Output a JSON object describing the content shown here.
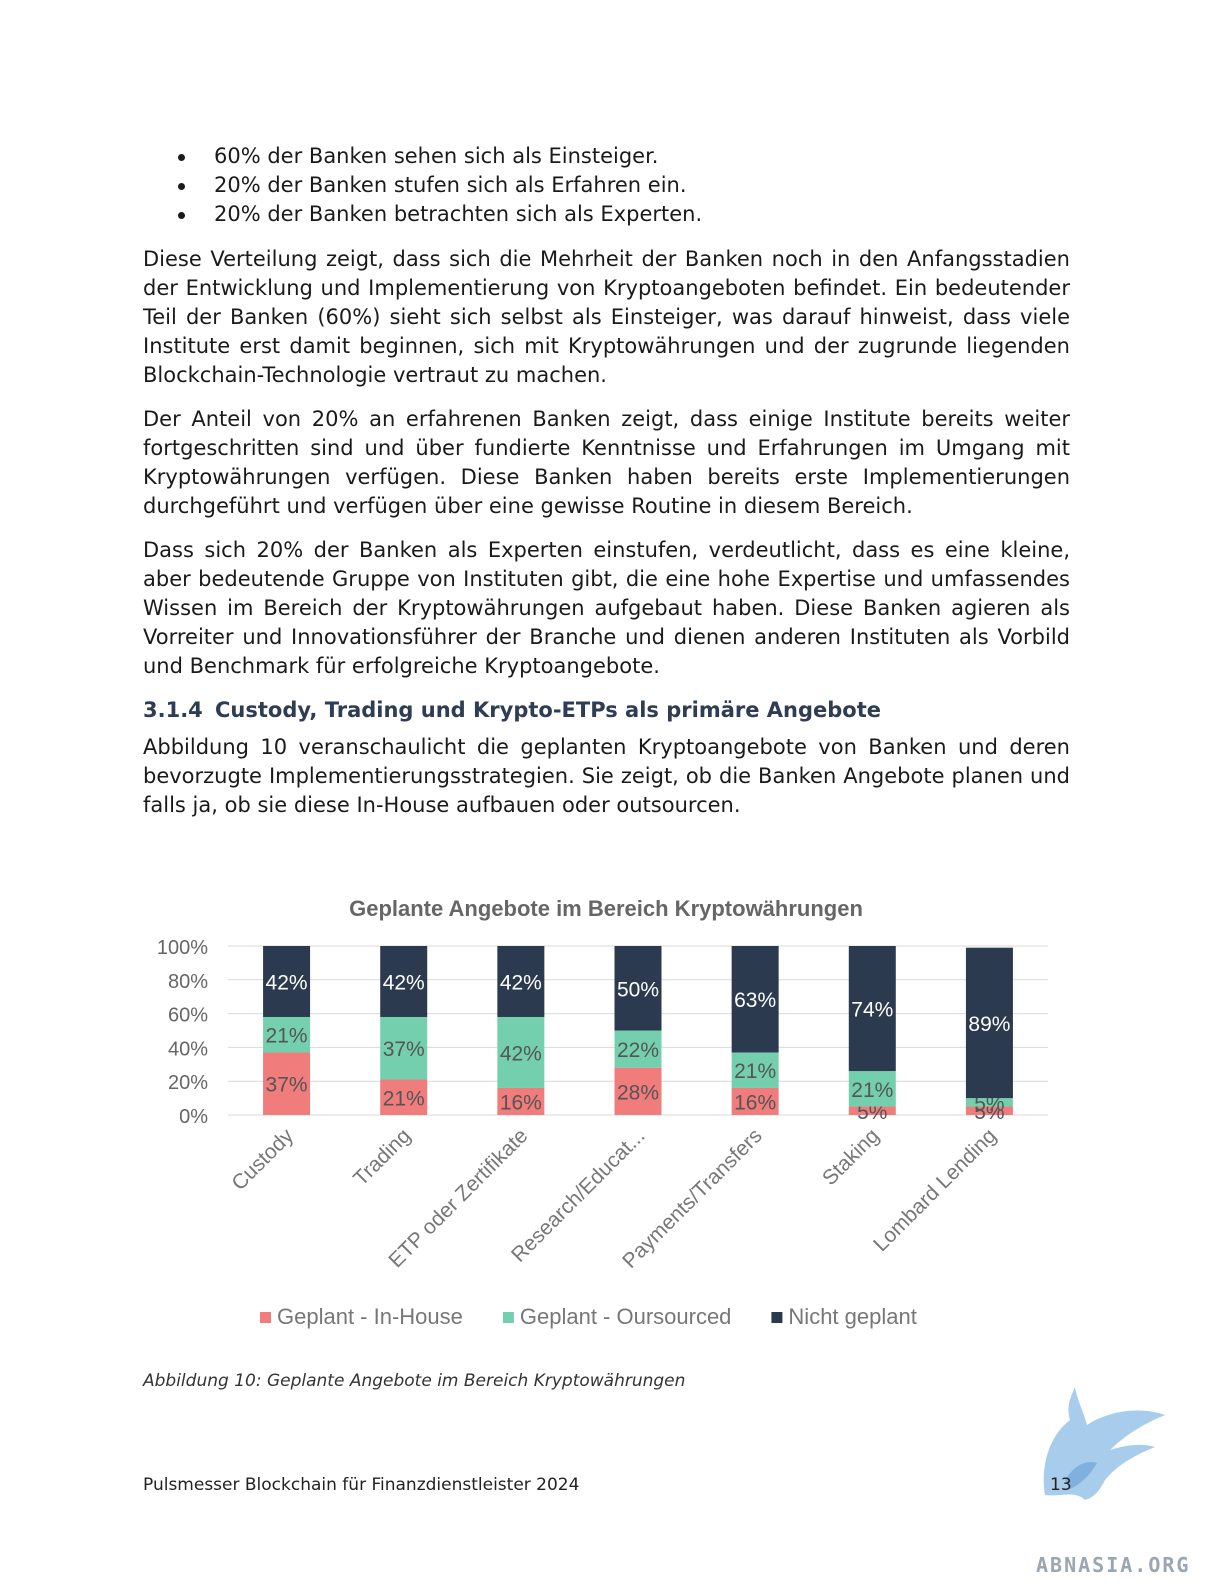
{
  "bullets": [
    "60% der Banken sehen sich als Einsteiger.",
    "20% der Banken stufen sich als Erfahren ein.",
    "20% der Banken betrachten sich als Experten."
  ],
  "paragraphs": {
    "p1": "Diese Verteilung zeigt, dass sich die Mehrheit der Banken noch in den Anfangsstadien der Entwicklung und Implementierung von Kryptoangeboten befindet. Ein bedeutender Teil der Banken (60%) sieht sich selbst als Einsteiger, was darauf hinweist, dass viele Institute erst damit beginnen, sich mit Kryptowährungen und der zugrunde liegenden Blockchain-Technologie vertraut zu machen.",
    "p2": "Der Anteil von 20% an erfahrenen Banken zeigt, dass einige Institute bereits weiter fortge­schritten sind und über fundierte Kenntnisse und Erfahrungen im Umgang mit Kryptowäh­rungen verfügen. Diese Banken haben bereits erste Implementierungen durchgeführt und verfügen über eine gewisse Routine in diesem Bereich.",
    "p3": "Dass sich 20% der Banken als Experten einstufen, verdeutlicht, dass es eine kleine, aber bedeutende Gruppe von Instituten gibt, die eine hohe Expertise und umfassendes Wissen im Bereich der Kryptowährungen aufgebaut haben. Diese Banken agieren als Vorreiter und Innovationsführer der Branche und dienen anderen Instituten als Vorbild und Bench­mark für erfolgreiche Kryptoangebote.",
    "p4": "Abbildung 10 veranschaulicht die geplanten Kryptoangebote von Banken und deren bevorzugte Implementierungsstrategien. Sie zeigt, ob die Banken Angebote planen und falls ja, ob sie diese In-House aufbauen oder outsourcen."
  },
  "heading": {
    "number": "3.1.4",
    "title": "Custody, Trading und Krypto-ETPs als primäre Angebote"
  },
  "chart_data": {
    "type": "bar",
    "stacked": true,
    "percent_stacked": true,
    "title": "Geplante Angebote im Bereich Kryptowährungen",
    "categories": [
      "Custody",
      "Trading",
      "ETP oder Zertifikate",
      "Research/Educat...",
      "Payments/Transfers",
      "Staking",
      "Lombard Lending"
    ],
    "series": [
      {
        "name": "Geplant - In-House",
        "color": "#f07c7c",
        "values": [
          37,
          21,
          16,
          28,
          16,
          5,
          5
        ]
      },
      {
        "name": "Geplant - Oursourced",
        "color": "#74cfae",
        "values": [
          21,
          37,
          42,
          22,
          21,
          21,
          5
        ]
      },
      {
        "name": "Nicht geplant",
        "color": "#2b3a4e",
        "values": [
          42,
          42,
          42,
          50,
          63,
          74,
          89
        ]
      }
    ],
    "yticks": [
      "0%",
      "20%",
      "40%",
      "60%",
      "80%",
      "100%"
    ],
    "ylim": [
      0,
      100
    ],
    "grid": true,
    "legend_position": "bottom"
  },
  "caption": "Abbildung 10: Geplante Angebote im Bereich Kryptowährungen",
  "footer": "Pulsmesser Blockchain für Finanzdienstleister 2024",
  "page_number": "13",
  "watermark": "ABNASIA.ORG"
}
